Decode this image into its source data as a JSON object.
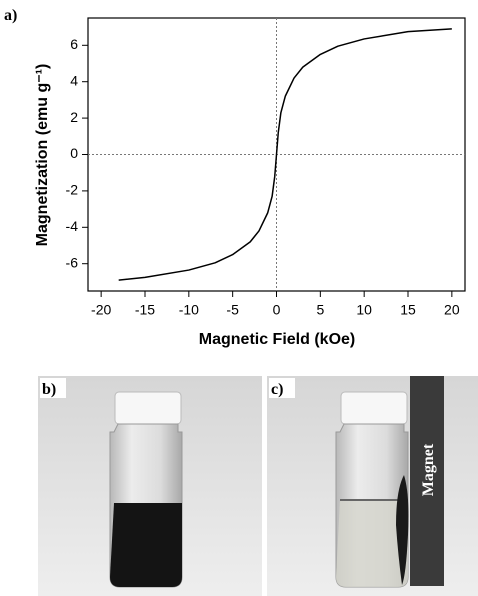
{
  "chart_data": {
    "type": "line",
    "xlabel": "Magnetic Field (kOe)",
    "ylabel": "Magnetization (emu g⁻¹)",
    "x": [
      -18,
      -15,
      -10,
      -7,
      -5,
      -3,
      -2,
      -1,
      -0.5,
      -0.2,
      0,
      0.2,
      0.5,
      1,
      2,
      3,
      5,
      7,
      10,
      15,
      20
    ],
    "values": [
      -6.9,
      -6.75,
      -6.35,
      -5.95,
      -5.5,
      -4.8,
      -4.2,
      -3.2,
      -2.3,
      -1.2,
      0,
      1.2,
      2.3,
      3.2,
      4.2,
      4.8,
      5.5,
      5.95,
      6.35,
      6.75,
      6.9
    ],
    "color": "#000000",
    "xlim": [
      -21.5,
      21.5
    ],
    "xticks": [
      -20,
      -15,
      -10,
      -5,
      0,
      5,
      10,
      15,
      20
    ],
    "ylim": [
      -7.5,
      7.5
    ],
    "yticks": [
      -6,
      -4,
      -2,
      0,
      2,
      4,
      6
    ]
  },
  "panel_labels": [
    "a)",
    "b)",
    "c)"
  ],
  "annotation": "Magnet"
}
